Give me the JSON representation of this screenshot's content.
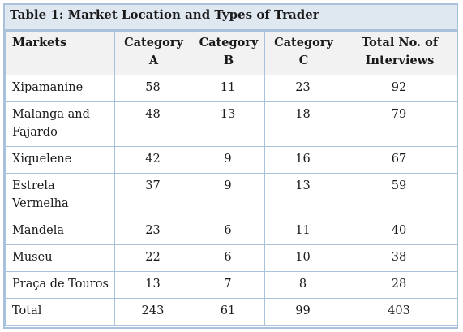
{
  "caption": "Table 1: Market Location and Types of Trader",
  "headers": {
    "markets": "Markets",
    "cat_a_1": "Category",
    "cat_a_2": "A",
    "cat_b_1": "Category",
    "cat_b_2": "B",
    "cat_c_1": "Category",
    "cat_c_2": "C",
    "total_1": "Total No. of",
    "total_2": "Interviews"
  },
  "rows": [
    {
      "name_1": "Xipamanine",
      "name_2": "",
      "a": "58",
      "b": "11",
      "c": "23",
      "total": "92"
    },
    {
      "name_1": "Malanga and",
      "name_2": "Fajardo",
      "a": "48",
      "b": "13",
      "c": "18",
      "total": "79"
    },
    {
      "name_1": "Xiquelene",
      "name_2": "",
      "a": "42",
      "b": "9",
      "c": "16",
      "total": "67"
    },
    {
      "name_1": "Estrela",
      "name_2": "Vermelha",
      "a": "37",
      "b": "9",
      "c": "13",
      "total": "59"
    },
    {
      "name_1": "Mandela",
      "name_2": "",
      "a": "23",
      "b": "6",
      "c": "11",
      "total": "40"
    },
    {
      "name_1": "Museu",
      "name_2": "",
      "a": "22",
      "b": "6",
      "c": "10",
      "total": "38"
    },
    {
      "name_1": "Praça de Touros",
      "name_2": "",
      "a": "13",
      "b": "7",
      "c": "8",
      "total": "28"
    },
    {
      "name_1": "Total",
      "name_2": "",
      "a": "243",
      "b": "61",
      "c": "99",
      "total": "403"
    }
  ]
}
